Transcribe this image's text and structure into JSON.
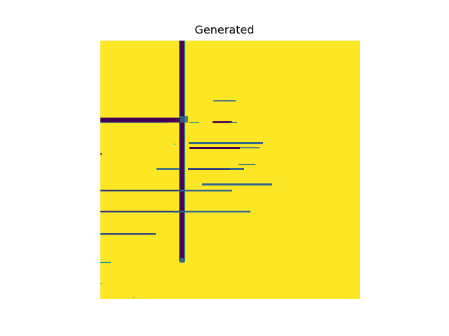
{
  "figure": {
    "title": "Generated"
  },
  "colors": {
    "background": "#fde725",
    "dark": "#440154",
    "mid_blue": "#31688e",
    "teal": "#21918c",
    "green": "#5ec962"
  }
}
